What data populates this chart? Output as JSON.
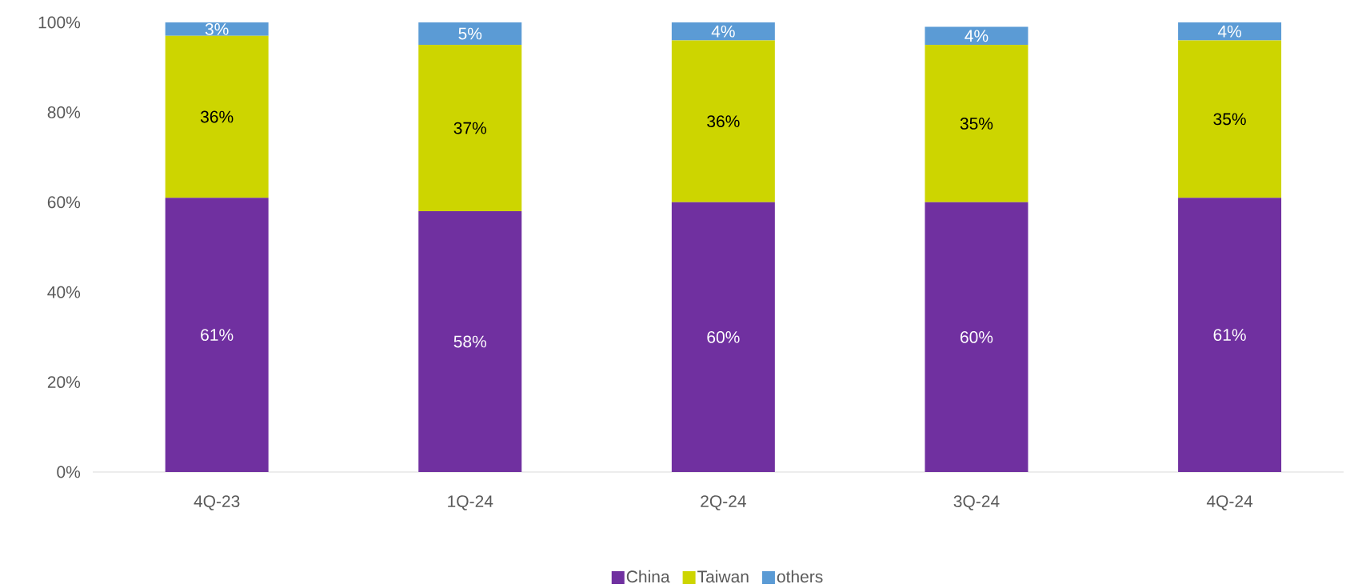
{
  "chart_data": {
    "type": "bar",
    "stacked": true,
    "categories": [
      "4Q-23",
      "1Q-24",
      "2Q-24",
      "3Q-24",
      "4Q-24"
    ],
    "series": [
      {
        "name": "China",
        "color": "#7030a0",
        "values": [
          61,
          58,
          60,
          60,
          61
        ],
        "value_labels": [
          "61%",
          "58%",
          "60%",
          "60%",
          "61%"
        ]
      },
      {
        "name": "Taiwan",
        "color": "#cdd500",
        "values": [
          36,
          37,
          36,
          35,
          35
        ],
        "value_labels": [
          "36%",
          "37%",
          "36%",
          "35%",
          "35%"
        ]
      },
      {
        "name": "others",
        "color": "#5b9bd5",
        "values": [
          3,
          5,
          4,
          4,
          4
        ],
        "value_labels": [
          "3%",
          "5%",
          "4%",
          "4%",
          "4%"
        ]
      }
    ],
    "ylim": [
      0,
      100
    ],
    "yticks": [
      {
        "value": 0,
        "label": "0%"
      },
      {
        "value": 20,
        "label": "20%"
      },
      {
        "value": 40,
        "label": "40%"
      },
      {
        "value": 60,
        "label": "60%"
      },
      {
        "value": 80,
        "label": "80%"
      },
      {
        "value": 100,
        "label": "100%"
      }
    ],
    "grid": false,
    "legend": "bottom"
  }
}
